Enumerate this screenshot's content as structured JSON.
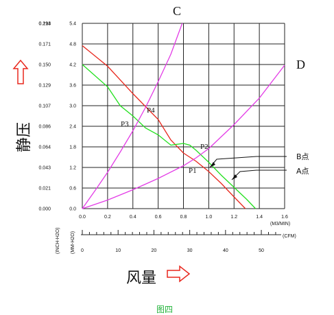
{
  "chart_data": {
    "type": "line",
    "x_axis": {
      "values": [
        0.0,
        0.2,
        0.4,
        0.6,
        0.8,
        1.0,
        1.2,
        1.4,
        1.6
      ],
      "tick_labels": [
        "0.0",
        "0.2",
        "0.4",
        "0.6",
        "0.8",
        "1.0",
        "1.2",
        "1.4",
        "1.6"
      ],
      "unit_label": "(M3/MIN)",
      "range": [
        0,
        1.6
      ]
    },
    "x_axis_cfm": {
      "tick_labels": [
        "0",
        "10",
        "20",
        "30",
        "40",
        "50"
      ],
      "unit_label": "(CFM)"
    },
    "y_axis_left": {
      "tick_labels": [
        "0.000",
        "0.021",
        "0.043",
        "0.064",
        "0.086",
        "0.107",
        "0.129",
        "0.150",
        "0.171",
        "0.193",
        "0.214"
      ],
      "unit_label": "(INCH-H2O)"
    },
    "y_axis_mm": {
      "values": [
        0.0,
        0.6,
        1.2,
        1.8,
        2.4,
        3.0,
        3.6,
        4.2,
        4.8,
        5.4
      ],
      "tick_labels": [
        "0.0",
        "0.6",
        "1.2",
        "1.8",
        "2.4",
        "3.0",
        "3.6",
        "4.2",
        "4.8",
        "5.4"
      ],
      "unit_label": "(MM-H2O)",
      "range": [
        0,
        5.4
      ]
    },
    "grid": true,
    "series": [
      {
        "id": "red",
        "color": "#e8261c",
        "x": [
          0.0,
          0.2,
          0.4,
          0.6,
          0.7,
          0.8,
          0.9,
          1.0,
          1.1,
          1.2,
          1.29
        ],
        "y": [
          4.75,
          4.15,
          3.35,
          2.6,
          2.0,
          1.62,
          1.38,
          1.08,
          0.73,
          0.34,
          0.0
        ]
      },
      {
        "id": "green",
        "color": "#22e01e",
        "x": [
          0.0,
          0.2,
          0.3,
          0.4,
          0.5,
          0.6,
          0.7,
          0.8,
          0.85,
          0.9,
          1.0,
          1.1,
          1.2,
          1.3,
          1.37
        ],
        "y": [
          4.2,
          3.55,
          3.0,
          2.7,
          2.35,
          2.15,
          1.85,
          1.9,
          1.85,
          1.7,
          1.35,
          0.97,
          0.62,
          0.27,
          0.0
        ]
      },
      {
        "id": "curve-c",
        "color": "#e33be6",
        "x": [
          0.0,
          0.1,
          0.2,
          0.3,
          0.4,
          0.5,
          0.6,
          0.7,
          0.75,
          0.79
        ],
        "y": [
          0.0,
          0.52,
          1.06,
          1.65,
          2.27,
          2.95,
          3.7,
          4.5,
          5.0,
          5.4
        ]
      },
      {
        "id": "curve-d",
        "color": "#e33be6",
        "x": [
          0.0,
          0.2,
          0.4,
          0.6,
          0.8,
          0.9,
          1.0,
          1.2,
          1.4,
          1.6
        ],
        "y": [
          0.0,
          0.25,
          0.55,
          0.88,
          1.25,
          1.48,
          1.75,
          2.45,
          3.22,
          4.18
        ]
      }
    ],
    "curve_labels": [
      "C",
      "D"
    ],
    "points": [
      {
        "label": "P1",
        "x": 0.98,
        "y": 1.2
      },
      {
        "label": "P2",
        "x": 0.98,
        "y": 1.65
      },
      {
        "label": "P3",
        "x": 0.4,
        "y": 2.27
      },
      {
        "label": "P4",
        "x": 0.5,
        "y": 2.8
      }
    ],
    "callouts": [
      "B点",
      "A点"
    ],
    "annotations": {
      "y_title": "静压",
      "x_title": "风量",
      "caption": "图四",
      "arrow_color": "#e8261c",
      "caption_color": "#22b33a"
    }
  }
}
